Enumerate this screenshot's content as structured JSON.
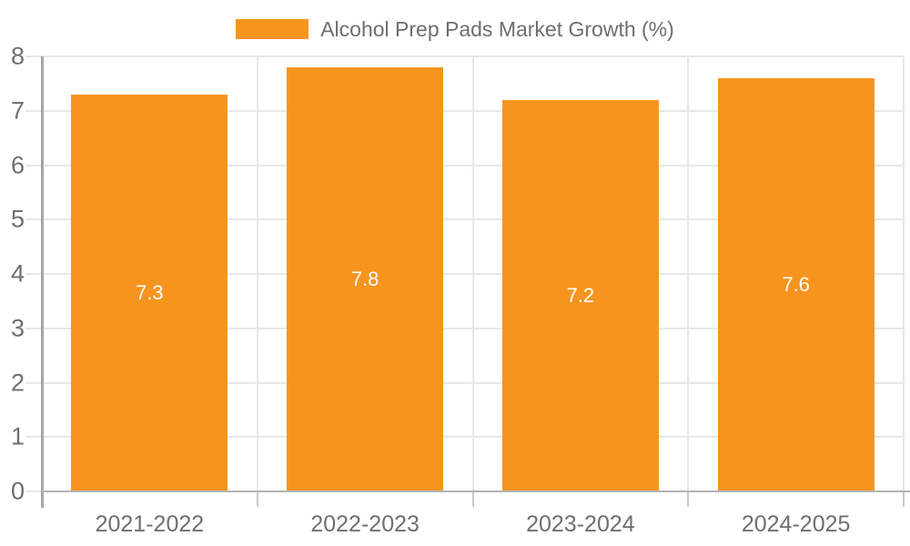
{
  "legend": {
    "label": "Alcohol Prep Pads Market Growth (%)"
  },
  "colors": {
    "bar": "#f7941e",
    "grid": "#e7e7e7",
    "y_axis": "#a6a6a6",
    "x_axis": "#b3b3b3",
    "x_tick": "#c9c9c9",
    "tick_text": "#6f6f6f",
    "legend_text": "#6e6e6e",
    "bar_label_text": "#ffffff",
    "background": "#ffffff"
  },
  "chart_data": {
    "type": "bar",
    "title": "Alcohol Prep Pads Market Growth (%)",
    "categories": [
      "2021-2022",
      "2022-2023",
      "2023-2024",
      "2024-2025"
    ],
    "values": [
      7.3,
      7.8,
      7.2,
      7.6
    ],
    "value_labels": [
      "7.3",
      "7.8",
      "7.2",
      "7.6"
    ],
    "xlabel": "",
    "ylabel": "",
    "ylim": [
      0,
      8
    ],
    "yticks": [
      0,
      1,
      2,
      3,
      4,
      5,
      6,
      7,
      8
    ],
    "grid": true,
    "legend_position": "top-center",
    "data_label_position": "inside-center"
  }
}
